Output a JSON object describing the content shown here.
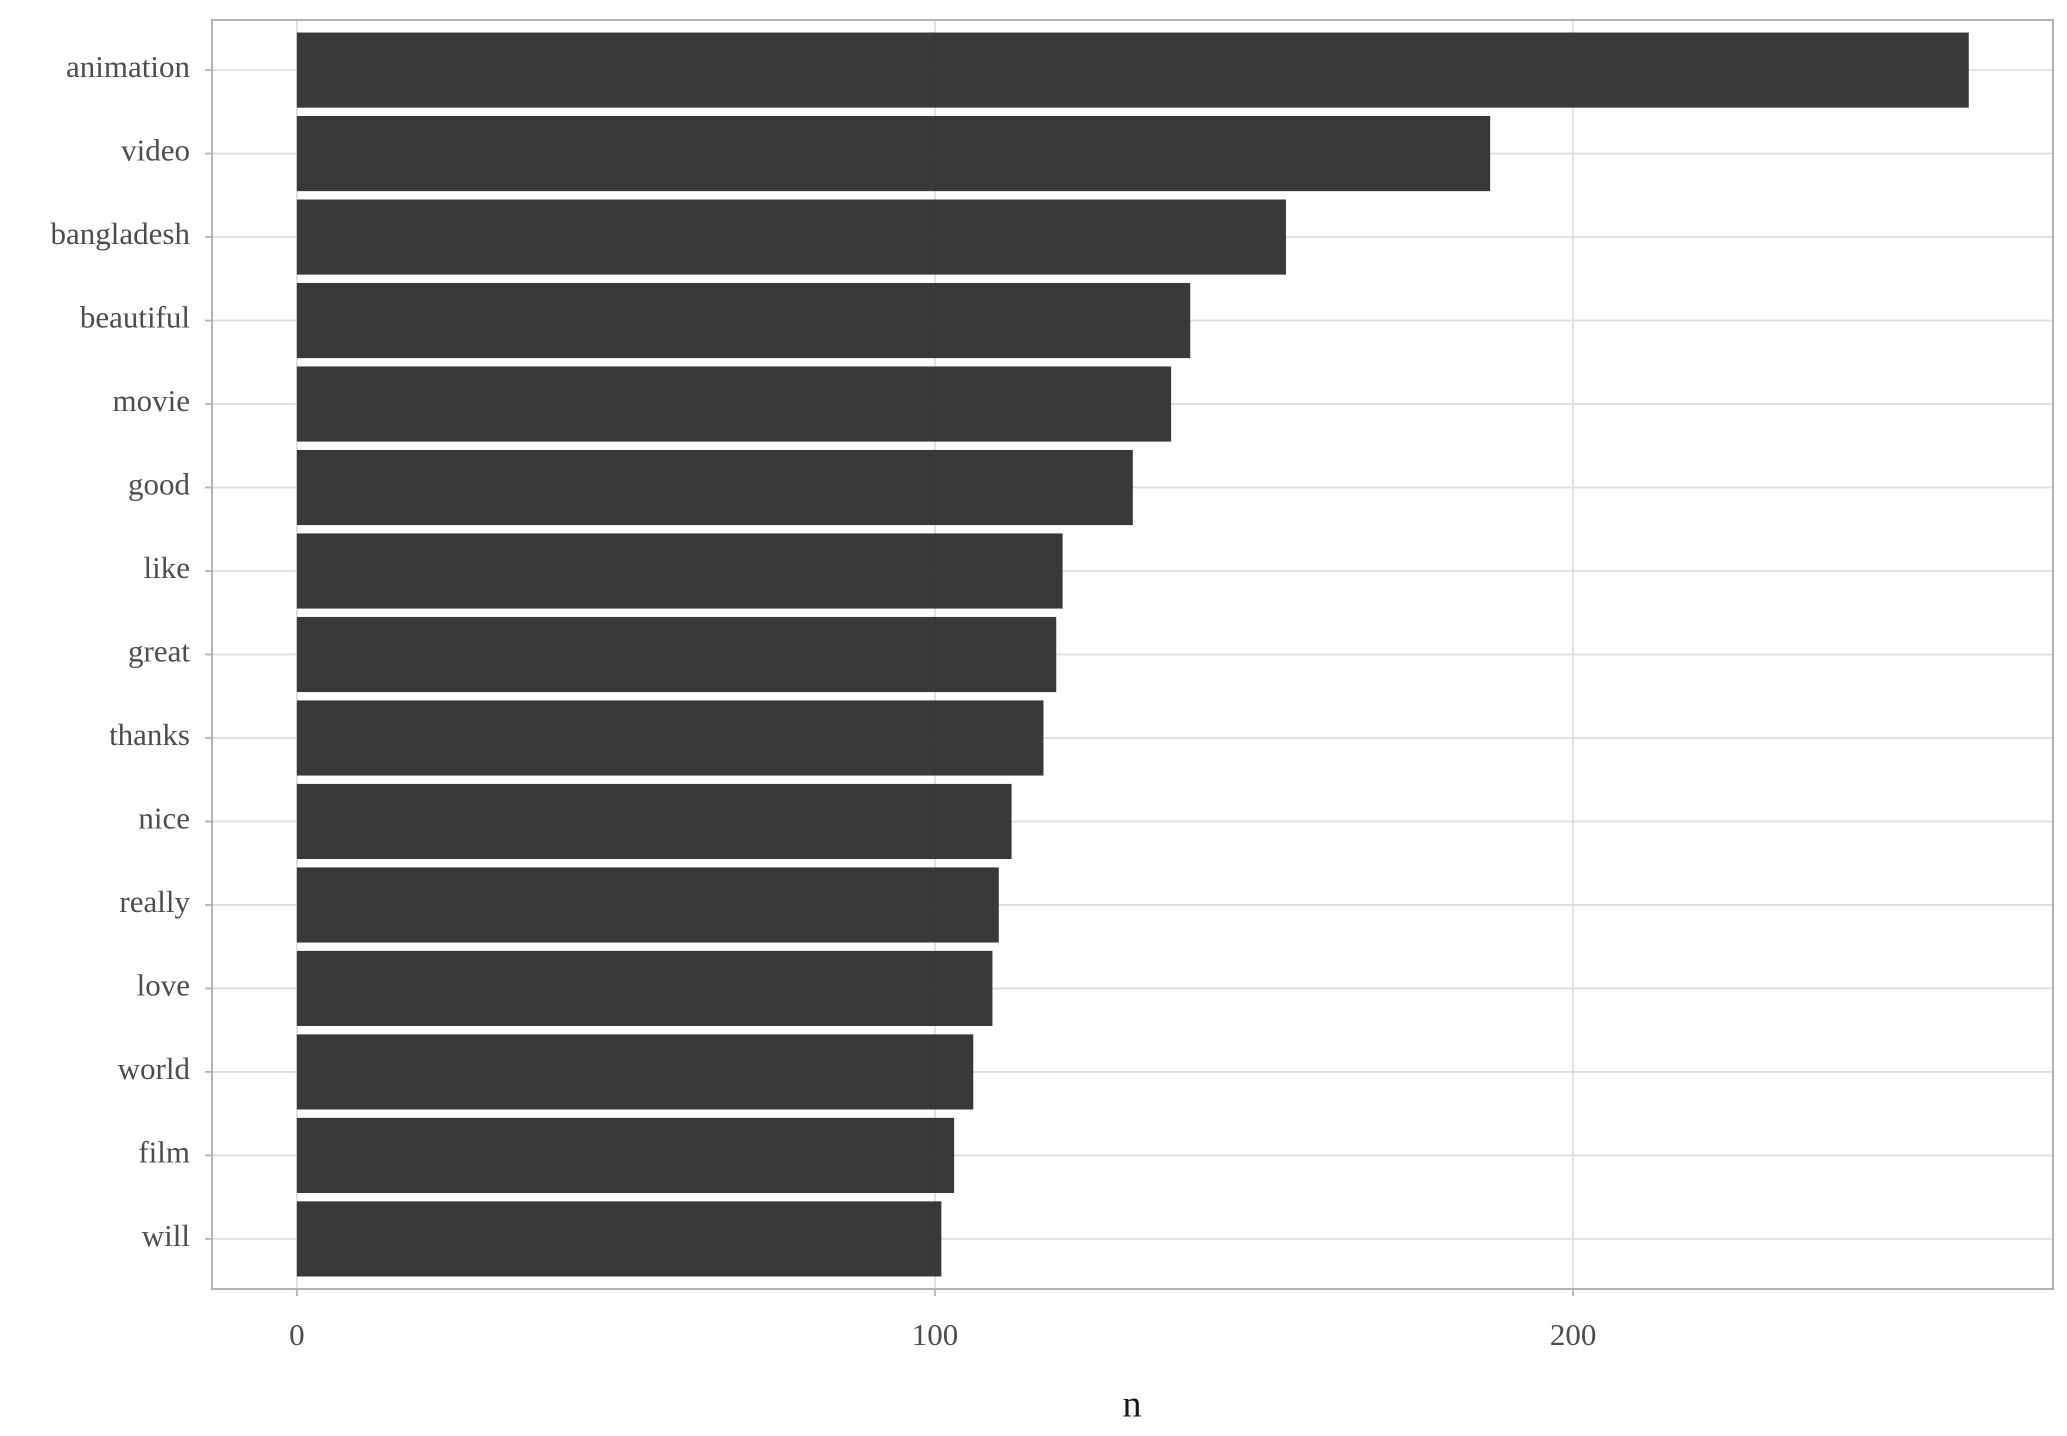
{
  "chart_data": {
    "type": "bar",
    "orientation": "horizontal",
    "x_label": "n",
    "categories": [
      "animation",
      "video",
      "bangladesh",
      "beautiful",
      "movie",
      "good",
      "like",
      "great",
      "thanks",
      "nice",
      "really",
      "love",
      "world",
      "film",
      "will"
    ],
    "values": [
      262,
      187,
      155,
      140,
      137,
      131,
      120,
      119,
      117,
      112,
      110,
      109,
      106,
      103,
      101
    ],
    "color": "#333333",
    "xlim": [
      -13.3,
      275.2
    ],
    "xticks": [
      0,
      100,
      200
    ],
    "grid": true
  }
}
